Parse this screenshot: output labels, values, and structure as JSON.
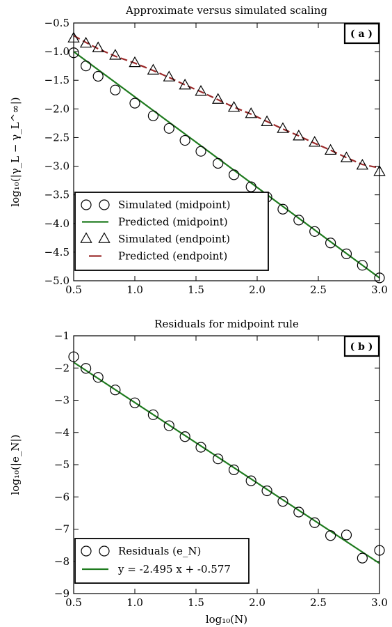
{
  "chart_data": [
    {
      "type": "line",
      "title": "Approximate versus simulated scaling",
      "xlabel": "",
      "ylabel": "log₁₀(|γ_L − γ_L^∞|)",
      "xlim": [
        0.5,
        3.0
      ],
      "ylim": [
        -5.0,
        -0.5
      ],
      "xticks": [
        "0.5",
        "1.0",
        "1.5",
        "2.0",
        "2.5",
        "3.0"
      ],
      "yticks": [
        "−0.5",
        "−1.0",
        "−1.5",
        "−2.0",
        "−2.5",
        "−3.0",
        "−3.5",
        "−4.0",
        "−4.5",
        "−5.0"
      ],
      "grid": false,
      "legend_placement": "lower-left",
      "panel_label": "( a )",
      "series": [
        {
          "name": "Simulated (midpoint)",
          "marker": "circle",
          "color": "#000000",
          "x": [
            0.5,
            0.6,
            0.7,
            0.84,
            1.0,
            1.15,
            1.28,
            1.41,
            1.54,
            1.68,
            1.81,
            1.95,
            2.08,
            2.21,
            2.34,
            2.47,
            2.6,
            2.73,
            2.86,
            3.0
          ],
          "y": [
            -1.02,
            -1.25,
            -1.43,
            -1.67,
            -1.9,
            -2.12,
            -2.34,
            -2.55,
            -2.74,
            -2.95,
            -3.15,
            -3.36,
            -3.54,
            -3.75,
            -3.94,
            -4.14,
            -4.34,
            -4.53,
            -4.73,
            -4.95
          ]
        },
        {
          "name": "Predicted (midpoint)",
          "line": "solid",
          "color": "#1e7a1e",
          "x": [
            0.5,
            3.0
          ],
          "y": [
            -1.0,
            -4.95
          ]
        },
        {
          "name": "Simulated (endpoint)",
          "marker": "triangle",
          "color": "#000000",
          "x": [
            0.5,
            0.6,
            0.7,
            0.84,
            1.0,
            1.15,
            1.28,
            1.41,
            1.54,
            1.68,
            1.81,
            1.95,
            2.08,
            2.21,
            2.34,
            2.47,
            2.6,
            2.73,
            2.86,
            3.0
          ],
          "y": [
            -0.77,
            -0.86,
            -0.94,
            -1.07,
            -1.2,
            -1.33,
            -1.45,
            -1.59,
            -1.7,
            -1.84,
            -1.98,
            -2.09,
            -2.23,
            -2.35,
            -2.48,
            -2.59,
            -2.73,
            -2.86,
            -2.99,
            -3.1
          ]
        },
        {
          "name": "Predicted (endpoint)",
          "line": "dashed",
          "color": "#9b2a2a",
          "x": [
            0.5,
            0.6,
            0.7,
            0.84,
            1.0,
            1.15,
            1.28,
            1.41,
            1.54,
            1.68,
            1.81,
            1.95,
            2.08,
            2.21,
            2.34,
            2.47,
            2.6,
            2.73,
            2.86,
            3.0
          ],
          "y": [
            -0.72,
            -0.84,
            -0.95,
            -1.08,
            -1.2,
            -1.33,
            -1.45,
            -1.58,
            -1.7,
            -1.84,
            -1.97,
            -2.09,
            -2.22,
            -2.35,
            -2.47,
            -2.6,
            -2.72,
            -2.85,
            -2.97,
            -3.03
          ]
        }
      ]
    },
    {
      "type": "line",
      "title": "Residuals for midpoint rule",
      "xlabel": "log₁₀(N)",
      "ylabel": "log₁₀(|e_N|)",
      "xlim": [
        0.5,
        3.0
      ],
      "ylim": [
        -9,
        -1
      ],
      "xticks": [
        "0.5",
        "1.0",
        "1.5",
        "2.0",
        "2.5",
        "3.0"
      ],
      "yticks": [
        "−1",
        "−2",
        "−3",
        "−4",
        "−5",
        "−6",
        "−7",
        "−8",
        "−9"
      ],
      "grid": false,
      "legend_placement": "lower-left",
      "panel_label": "( b )",
      "series": [
        {
          "name": "Residuals (e_N)",
          "marker": "circle",
          "color": "#000000",
          "x": [
            0.5,
            0.6,
            0.7,
            0.84,
            1.0,
            1.15,
            1.28,
            1.41,
            1.54,
            1.68,
            1.81,
            1.95,
            2.08,
            2.21,
            2.34,
            2.47,
            2.6,
            2.73,
            2.86,
            3.0
          ],
          "y": [
            -1.65,
            -2.01,
            -2.29,
            -2.68,
            -3.08,
            -3.45,
            -3.79,
            -4.13,
            -4.46,
            -4.82,
            -5.16,
            -5.5,
            -5.81,
            -6.14,
            -6.47,
            -6.8,
            -7.2,
            -7.18,
            -7.9,
            -7.66
          ]
        },
        {
          "name": "y = -2.495 x + -0.577",
          "line": "solid",
          "color": "#1e7a1e",
          "x": [
            0.5,
            3.0
          ],
          "y": [
            -1.8245,
            -8.062
          ]
        }
      ]
    }
  ]
}
